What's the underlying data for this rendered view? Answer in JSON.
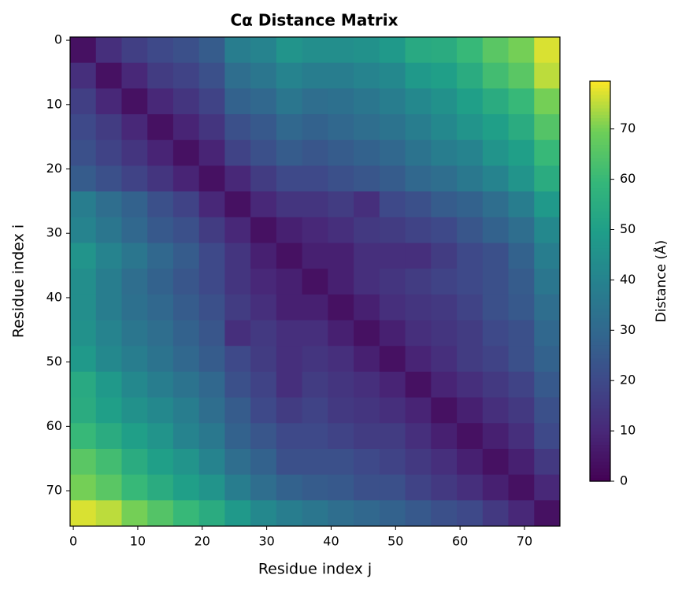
{
  "chart_data": {
    "type": "heatmap",
    "title": "Cα Distance Matrix",
    "x_label": "Residue index j",
    "y_label": "Residue index i",
    "colorbar_label": "Distance (Å)",
    "xbins": [
      -0.5,
      3.5,
      7.5,
      11.5,
      15.5,
      19.5,
      23.5,
      27.5,
      31.5,
      35.5,
      39.5,
      43.5,
      47.5,
      51.5,
      55.5,
      59.5,
      63.5,
      67.5,
      71.5,
      75.5
    ],
    "ybins": [
      -0.5,
      3.5,
      7.5,
      11.5,
      15.5,
      19.5,
      23.5,
      27.5,
      31.5,
      35.5,
      39.5,
      43.5,
      47.5,
      51.5,
      55.5,
      59.5,
      63.5,
      67.5,
      71.5,
      75.5
    ],
    "xlim": [
      -0.5,
      75.5
    ],
    "ylim": [
      75.5,
      -0.5
    ],
    "xticks": [
      0,
      10,
      20,
      30,
      40,
      50,
      60,
      70
    ],
    "yticks": [
      0,
      10,
      20,
      30,
      40,
      50,
      60,
      70
    ],
    "clim": [
      0,
      79.5
    ],
    "cticks": [
      0,
      10,
      20,
      30,
      40,
      50,
      60,
      70
    ],
    "colormap": "viridis",
    "values": [
      [
        4,
        12,
        17,
        20,
        22,
        26,
        38,
        40,
        46,
        44,
        44,
        45,
        48,
        54,
        55,
        60,
        66,
        70,
        77
      ],
      [
        12,
        4,
        10,
        16,
        18,
        22,
        32,
        35,
        40,
        38,
        38,
        40,
        42,
        48,
        50,
        55,
        62,
        66,
        75
      ],
      [
        17,
        10,
        4,
        10,
        14,
        18,
        28,
        30,
        35,
        32,
        33,
        35,
        38,
        42,
        45,
        50,
        55,
        60,
        70
      ],
      [
        20,
        16,
        10,
        4,
        9,
        14,
        22,
        25,
        30,
        28,
        30,
        32,
        34,
        38,
        42,
        46,
        50,
        55,
        65
      ],
      [
        22,
        18,
        14,
        9,
        4,
        9,
        18,
        22,
        26,
        24,
        26,
        28,
        30,
        34,
        38,
        40,
        46,
        50,
        60
      ],
      [
        26,
        22,
        18,
        14,
        9,
        4,
        10,
        16,
        20,
        20,
        22,
        24,
        26,
        30,
        32,
        36,
        40,
        46,
        55
      ],
      [
        38,
        32,
        28,
        22,
        18,
        10,
        4,
        10,
        14,
        14,
        16,
        12,
        20,
        22,
        26,
        28,
        32,
        38,
        48
      ],
      [
        40,
        35,
        30,
        25,
        22,
        16,
        10,
        4,
        8,
        10,
        12,
        15,
        16,
        18,
        20,
        24,
        28,
        32,
        42
      ],
      [
        46,
        40,
        35,
        30,
        26,
        20,
        14,
        8,
        4,
        8,
        8,
        12,
        12,
        12,
        16,
        20,
        22,
        28,
        38
      ],
      [
        44,
        38,
        32,
        28,
        24,
        20,
        14,
        10,
        8,
        4,
        8,
        12,
        14,
        16,
        18,
        20,
        22,
        26,
        35
      ],
      [
        44,
        38,
        33,
        30,
        26,
        22,
        16,
        12,
        8,
        8,
        4,
        8,
        12,
        14,
        15,
        18,
        22,
        25,
        32
      ],
      [
        45,
        40,
        35,
        32,
        28,
        24,
        12,
        15,
        12,
        12,
        8,
        4,
        8,
        12,
        14,
        16,
        20,
        22,
        30
      ],
      [
        48,
        42,
        38,
        34,
        30,
        26,
        20,
        16,
        12,
        14,
        12,
        8,
        4,
        9,
        12,
        16,
        18,
        22,
        28
      ],
      [
        54,
        48,
        42,
        38,
        34,
        30,
        22,
        18,
        12,
        16,
        14,
        12,
        9,
        4,
        9,
        12,
        15,
        18,
        25
      ],
      [
        55,
        50,
        45,
        42,
        38,
        32,
        26,
        20,
        16,
        18,
        15,
        14,
        12,
        9,
        4,
        8,
        12,
        15,
        22
      ],
      [
        60,
        55,
        50,
        46,
        40,
        36,
        28,
        24,
        20,
        20,
        18,
        16,
        16,
        12,
        8,
        4,
        8,
        12,
        20
      ],
      [
        66,
        62,
        55,
        50,
        46,
        40,
        32,
        28,
        22,
        22,
        22,
        20,
        18,
        15,
        12,
        8,
        4,
        8,
        15
      ],
      [
        70,
        66,
        60,
        55,
        50,
        46,
        38,
        32,
        28,
        26,
        25,
        22,
        22,
        18,
        15,
        12,
        8,
        4,
        10
      ],
      [
        77,
        75,
        70,
        65,
        60,
        55,
        48,
        42,
        38,
        35,
        32,
        30,
        28,
        25,
        22,
        20,
        15,
        10,
        4
      ]
    ]
  }
}
